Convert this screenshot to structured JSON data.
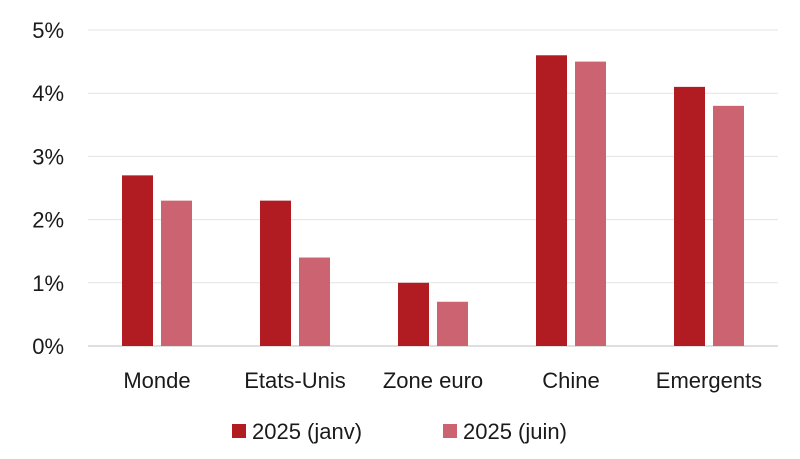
{
  "chart_data": {
    "type": "bar",
    "categories": [
      "Monde",
      "Etats-Unis",
      "Zone euro",
      "Chine",
      "Emergents"
    ],
    "series": [
      {
        "name": "2025 (janv)",
        "color": "#b01c22",
        "values": [
          2.7,
          2.3,
          1.0,
          4.6,
          4.1
        ]
      },
      {
        "name": "2025 (juin)",
        "color": "#cb6470",
        "values": [
          2.3,
          1.4,
          0.7,
          4.5,
          3.8
        ]
      }
    ],
    "title": "",
    "xlabel": "",
    "ylabel": "",
    "ylim": [
      0,
      5
    ],
    "yticks": [
      "0%",
      "1%",
      "2%",
      "3%",
      "4%",
      "5%"
    ],
    "grid": true,
    "legend": "bottom"
  }
}
